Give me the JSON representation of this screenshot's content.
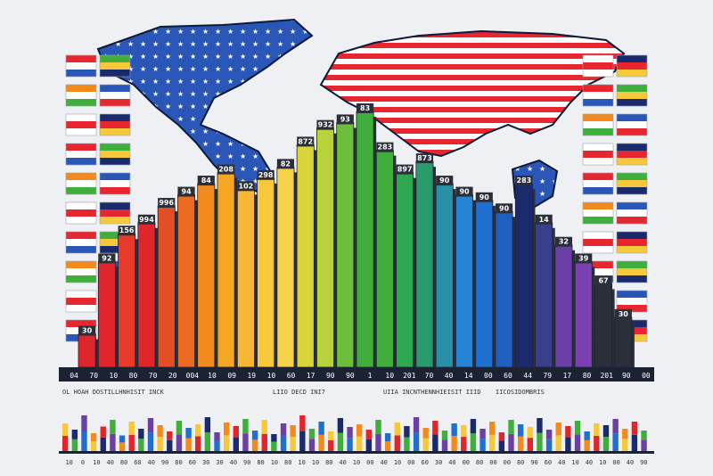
{
  "chart_data": {
    "type": "bar",
    "title": "",
    "xlabel": "",
    "ylabel": "",
    "ylim": [
      0,
      100
    ],
    "grid": false,
    "legend": "none",
    "colors": {
      "background": "#eef0f3",
      "base": "#1b2233",
      "shadow": "#2a2f3a",
      "red": "#e0262a",
      "orange": "#f28a1d",
      "yellow": "#f7c93a",
      "green": "#3fae3b",
      "blue": "#1f6fd1",
      "navy": "#1a2a6c",
      "purple": "#6a3fa6"
    },
    "bars": [
      {
        "value": 12,
        "color": "#e0262a",
        "label": "30"
      },
      {
        "value": 38,
        "color": "#e0262a",
        "label": "92"
      },
      {
        "value": 48,
        "color": "#e83a2a",
        "label": "156"
      },
      {
        "value": 52,
        "color": "#e0262a",
        "label": "994"
      },
      {
        "value": 58,
        "color": "#e44e25",
        "label": "996"
      },
      {
        "value": 62,
        "color": "#ec6a22",
        "label": "94"
      },
      {
        "value": 66,
        "color": "#f28a1d",
        "label": "84"
      },
      {
        "value": 70,
        "color": "#f5a623",
        "label": "208"
      },
      {
        "value": 64,
        "color": "#f7b733",
        "label": "102"
      },
      {
        "value": 68,
        "color": "#f7c93a",
        "label": "298"
      },
      {
        "value": 72,
        "color": "#f5d24a",
        "label": "82"
      },
      {
        "value": 80,
        "color": "#d9d43a",
        "label": "872"
      },
      {
        "value": 86,
        "color": "#b7d23a",
        "label": "932"
      },
      {
        "value": 88,
        "color": "#6cbf3a",
        "label": "93"
      },
      {
        "value": 92,
        "color": "#3fae3b",
        "label": "83"
      },
      {
        "value": 78,
        "color": "#3fae3b",
        "label": "283"
      },
      {
        "value": 70,
        "color": "#2fa852",
        "label": "897"
      },
      {
        "value": 74,
        "color": "#2a9c6c",
        "label": "873"
      },
      {
        "value": 66,
        "color": "#2a90a8",
        "label": "90"
      },
      {
        "value": 62,
        "color": "#2584d6",
        "label": "90"
      },
      {
        "value": 60,
        "color": "#1f6fd1",
        "label": "90"
      },
      {
        "value": 56,
        "color": "#1f5fc0",
        "label": "90"
      },
      {
        "value": 66,
        "color": "#1a2a6c",
        "label": "283"
      },
      {
        "value": 52,
        "color": "#3a3f8c",
        "label": "14"
      },
      {
        "value": 44,
        "color": "#6a3fa6",
        "label": "32"
      },
      {
        "value": 38,
        "color": "#7a3fb0",
        "label": "39"
      },
      {
        "value": 30,
        "color": "#2a2f3a",
        "label": "67"
      },
      {
        "value": 18,
        "color": "#2a2f3a",
        "label": "30"
      }
    ],
    "x_tick_labels": [
      "04",
      "70",
      "10",
      "80",
      "70",
      "20",
      "004",
      "10",
      "09",
      "19",
      "10",
      "60",
      "17",
      "90",
      "90",
      "1",
      "10",
      "201",
      "70",
      "40",
      "14",
      "00",
      "60",
      "44",
      "79",
      "17",
      "80",
      "201",
      "90",
      "00"
    ],
    "caption_left": "OL  HOAH DOSTILLHNHISIT INCK",
    "caption_mid": "LIIO DECD INI7",
    "caption_mid2": "UIIA INCNTHENNHIEISIT IIID",
    "caption_right": "IICOSIDOMBRIS",
    "lower_strip_values": [
      62,
      48,
      80,
      40,
      55,
      70,
      35,
      66,
      50,
      74,
      58,
      44,
      68,
      52,
      60,
      76,
      42,
      64,
      56,
      72,
      46,
      70,
      38,
      62,
      58,
      80,
      50,
      66,
      44,
      74,
      54,
      60,
      48,
      70,
      40,
      64,
      56,
      76,
      52,
      68,
      46,
      62,
      58,
      72,
      50,
      66,
      42,
      70,
      60,
      54,
      74,
      48,
      64,
      56,
      68,
      44,
      62,
      58,
      72,
      50,
      66,
      46
    ],
    "lower_tick_labels": [
      "10",
      "0",
      "10",
      "40",
      "80",
      "60",
      "40",
      "90",
      "80",
      "60",
      "30",
      "30",
      "40",
      "90",
      "80",
      "10",
      "80",
      "10",
      "10",
      "80",
      "40",
      "10",
      "00",
      "40",
      "10",
      "00",
      "60",
      "30",
      "40",
      "00",
      "80",
      "00",
      "00",
      "80",
      "90",
      "60",
      "40",
      "10",
      "40",
      "10",
      "00",
      "40",
      "90"
    ]
  }
}
